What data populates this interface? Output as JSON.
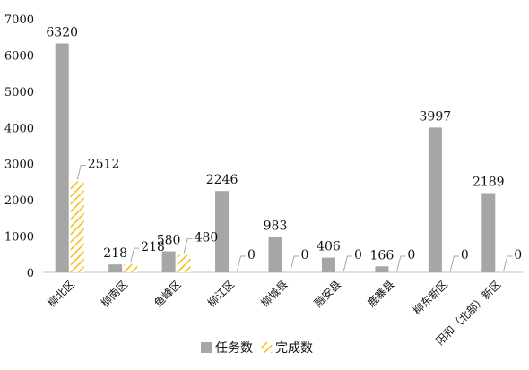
{
  "chart_data": {
    "type": "bar",
    "categories": [
      "柳北区",
      "柳南区",
      "鱼峰区",
      "柳江区",
      "柳城县",
      "融安县",
      "鹿寨县",
      "柳东新区",
      "阳和（北部）新区"
    ],
    "series": [
      {
        "name": "任务数",
        "values": [
          6320,
          218,
          580,
          2246,
          983,
          406,
          166,
          3997,
          2189
        ],
        "color": "#a6a6a6",
        "pattern": "solid"
      },
      {
        "name": "完成数",
        "values": [
          2512,
          218,
          480,
          0,
          0,
          0,
          0,
          0,
          0
        ],
        "color": "#f2c21b",
        "pattern": "diagonal-hatch"
      }
    ],
    "y_ticks": [
      0,
      1000,
      2000,
      3000,
      4000,
      5000,
      6000,
      7000
    ],
    "ylim": [
      0,
      7000
    ],
    "grid": false,
    "legend_position": "bottom",
    "title": "",
    "xlabel": "",
    "ylabel": ""
  }
}
